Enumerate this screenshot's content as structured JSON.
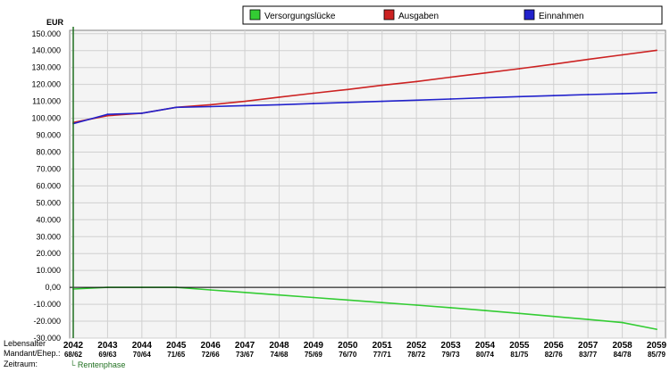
{
  "chart_data": {
    "type": "line",
    "title": "",
    "ylabel": "EUR",
    "xlabel": "",
    "ylim": [
      -30000,
      152000
    ],
    "yticks": [
      -30000,
      -20000,
      -10000,
      0,
      10000,
      20000,
      30000,
      40000,
      50000,
      60000,
      70000,
      80000,
      90000,
      100000,
      110000,
      120000,
      130000,
      140000,
      150000
    ],
    "yticklabels": [
      "-30.000",
      "-20.000",
      "-10.000",
      "0,00",
      "10.000",
      "20.000",
      "30.000",
      "40.000",
      "50.000",
      "60.000",
      "70.000",
      "80.000",
      "90.000",
      "100.000",
      "110.000",
      "120.000",
      "130.000",
      "140.000",
      "150.000"
    ],
    "grid": true,
    "legend_position": "top",
    "categories": [
      "2042",
      "2043",
      "2044",
      "2045",
      "2046",
      "2047",
      "2048",
      "2049",
      "2050",
      "2051",
      "2052",
      "2053",
      "2054",
      "2055",
      "2056",
      "2057",
      "2058",
      "2059"
    ],
    "ages": [
      "68/62",
      "69/63",
      "70/64",
      "71/65",
      "72/66",
      "73/67",
      "74/68",
      "75/69",
      "76/70",
      "77/71",
      "78/72",
      "79/73",
      "80/74",
      "81/75",
      "82/76",
      "83/77",
      "84/78",
      "85/79"
    ],
    "series": [
      {
        "name": "Versorgungslücke",
        "color": "#33cc33",
        "values": [
          -1000,
          0,
          0,
          0,
          -1500,
          -3000,
          -4500,
          -6000,
          -7500,
          -9000,
          -10500,
          -12000,
          -13700,
          -15400,
          -17200,
          -19000,
          -20800,
          -24800
        ]
      },
      {
        "name": "Ausgaben",
        "color": "#cc2222",
        "values": [
          97500,
          101500,
          103000,
          106500,
          108000,
          110000,
          112500,
          114800,
          117000,
          119500,
          121700,
          124300,
          126800,
          129300,
          132000,
          134800,
          137500,
          140200
        ]
      },
      {
        "name": "Einnahmen",
        "color": "#2222cc",
        "values": [
          96800,
          102300,
          103000,
          106500,
          106900,
          107500,
          108000,
          108700,
          109400,
          110000,
          110700,
          111400,
          112100,
          112800,
          113400,
          114000,
          114500,
          115200
        ]
      }
    ]
  },
  "labels": {
    "row_lebensalter": "Lebensalter",
    "row_mandant": "Mandant/Ehep.:",
    "row_zeitraum": "Zeitraum:",
    "phase": "└ Rentenphase"
  }
}
